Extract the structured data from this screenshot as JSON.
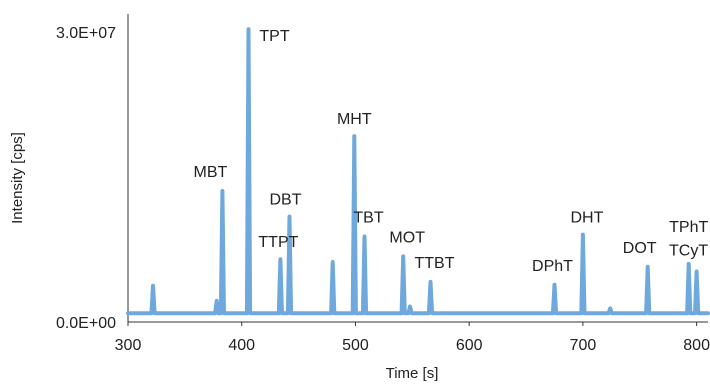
{
  "chart_data": {
    "type": "line",
    "title": "",
    "xlabel": "Time [s]",
    "ylabel": "Intensity [cps]",
    "xlim": [
      300,
      810
    ],
    "ylim": [
      0,
      30000000
    ],
    "x_ticks": [
      300,
      400,
      500,
      600,
      700,
      800
    ],
    "y_ticks": [
      {
        "value": 0,
        "label": "0.0E+00"
      },
      {
        "value": 30000000,
        "label": "3.0E+07"
      }
    ],
    "grid": false,
    "legend": "none",
    "series_color": "#6fa8dc",
    "baseline": 300000,
    "peaks": [
      {
        "t": 322,
        "intensity": 3200000,
        "label": ""
      },
      {
        "t": 378,
        "intensity": 1600000,
        "label": ""
      },
      {
        "t": 383,
        "intensity": 13200000,
        "label": "MBT"
      },
      {
        "t": 406,
        "intensity": 30300000,
        "label": "TPT"
      },
      {
        "t": 434,
        "intensity": 6000000,
        "label": "TTPT"
      },
      {
        "t": 442,
        "intensity": 10500000,
        "label": "DBT"
      },
      {
        "t": 480,
        "intensity": 5700000,
        "label": ""
      },
      {
        "t": 499,
        "intensity": 19000000,
        "label": "MHT"
      },
      {
        "t": 508,
        "intensity": 8400000,
        "label": "TBT"
      },
      {
        "t": 542,
        "intensity": 6300000,
        "label": "MOT"
      },
      {
        "t": 548,
        "intensity": 1000000,
        "label": ""
      },
      {
        "t": 566,
        "intensity": 3600000,
        "label": "TTBT"
      },
      {
        "t": 675,
        "intensity": 3300000,
        "label": "DPhT"
      },
      {
        "t": 700,
        "intensity": 8600000,
        "label": "DHT"
      },
      {
        "t": 724,
        "intensity": 800000,
        "label": ""
      },
      {
        "t": 757,
        "intensity": 5200000,
        "label": "DOT"
      },
      {
        "t": 793,
        "intensity": 5500000,
        "label": "TPhT"
      },
      {
        "t": 800,
        "intensity": 4700000,
        "label": "TCyT"
      }
    ]
  }
}
